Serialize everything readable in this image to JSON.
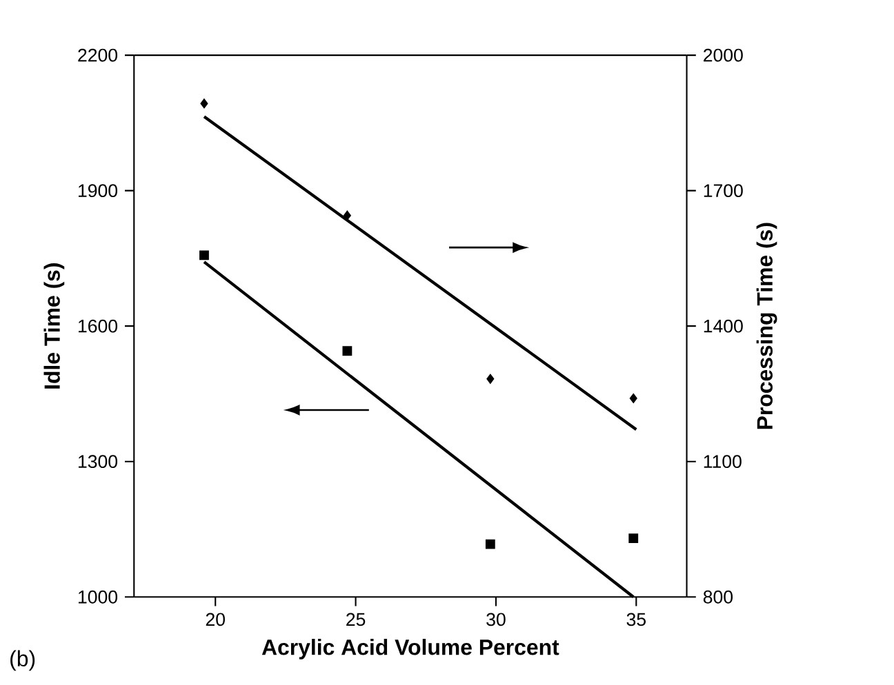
{
  "chart_data": {
    "type": "scatter",
    "xlabel": "Acrylic Acid Volume Percent",
    "ylabel": "Idle Time (s)",
    "y2label": "Processing Time (s)",
    "xlim": [
      17.1,
      36.8
    ],
    "xticks": [
      20,
      25,
      30,
      35
    ],
    "ylim": [
      1000,
      2200
    ],
    "yticks": [
      1000,
      1300,
      1600,
      1900,
      2200
    ],
    "y2lim": [
      800,
      2000
    ],
    "y2ticks": [
      800,
      1100,
      1400,
      1700,
      2000
    ],
    "series": [
      {
        "marker": "square",
        "color": "#000000",
        "x": [
          19.6,
          24.7,
          29.8,
          34.9
        ],
        "values": [
          1757,
          1545,
          1117,
          1130
        ]
      },
      {
        "marker": "diamond",
        "color": "#000000",
        "axis": "y2",
        "x": [
          19.6,
          24.7,
          29.8,
          34.9
        ],
        "values": [
          1893,
          1645,
          1283,
          1240
        ]
      },
      {
        "type": "line",
        "marker": "none",
        "color": "#000000",
        "x": [
          19.6,
          34.9
        ],
        "values": [
          1742,
          1000
        ]
      },
      {
        "type": "line",
        "marker": "none",
        "color": "#000000",
        "axis": "y2",
        "x": [
          19.6,
          35.0
        ],
        "values": [
          1864,
          1171
        ]
      }
    ],
    "annotations": [
      "(b)"
    ]
  }
}
